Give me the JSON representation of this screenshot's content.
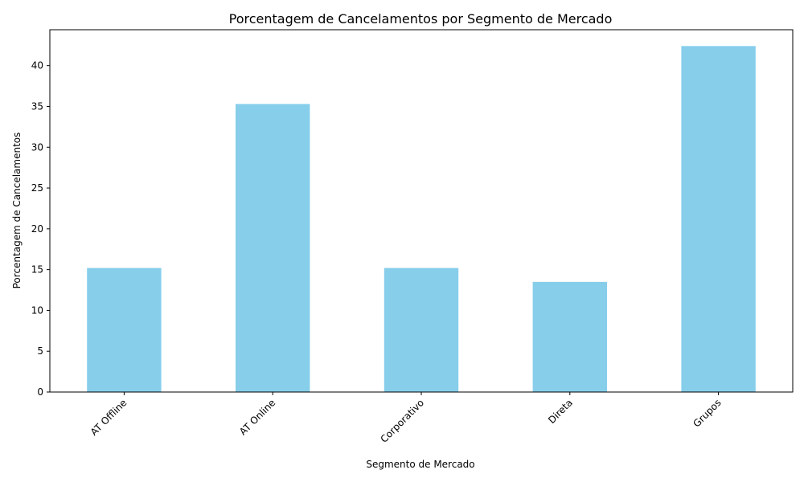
{
  "chart_data": {
    "type": "bar",
    "title": "Porcentagem de Cancelamentos por Segmento de Mercado",
    "xlabel": "Segmento de Mercado",
    "ylabel": "Porcentagem de Cancelamentos",
    "categories": [
      "AT Offline",
      "AT Online",
      "Corporativo",
      "Direta",
      "Grupos"
    ],
    "values": [
      15.2,
      35.3,
      15.2,
      13.5,
      42.4
    ],
    "ylim": [
      0,
      44.4
    ],
    "yticks": [
      0,
      5,
      10,
      15,
      20,
      25,
      30,
      35,
      40
    ],
    "xtick_rotation": 45,
    "bar_color": "#87CEEB",
    "grid": false,
    "legend": false
  }
}
